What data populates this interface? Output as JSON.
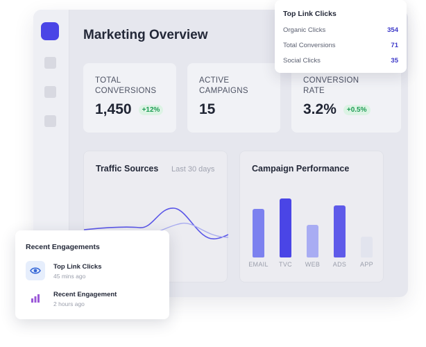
{
  "header": {
    "title": "Marketing Overview"
  },
  "stats": [
    {
      "label": "TOTAL CONVERSIONS",
      "value": "1,450",
      "badge": "+12%"
    },
    {
      "label": "ACTIVE CAMPAIGNS",
      "value": "15",
      "badge": ""
    },
    {
      "label": "CONVERSION RATE",
      "value": "3.2%",
      "badge": "+0.5%"
    }
  ],
  "traffic": {
    "title": "Traffic Sources",
    "subtitle": "Last 30 days"
  },
  "campaign": {
    "title": "Campaign Performance",
    "chart_data": {
      "type": "bar",
      "categories": [
        "EMAIL",
        "TVC",
        "WEB",
        "ADS",
        "APP"
      ],
      "values": [
        70,
        85,
        47,
        75,
        30
      ],
      "ylim": [
        0,
        100
      ],
      "colors": [
        "#7c81ef",
        "#4a45e6",
        "#a8acf3",
        "#5e5ae9",
        "#e2e4ee"
      ]
    }
  },
  "top_links": {
    "title": "Top Link Clicks",
    "rows": [
      {
        "label": "Organic Clicks",
        "value": "354"
      },
      {
        "label": "Total Conversions",
        "value": "71"
      },
      {
        "label": "Social Clicks",
        "value": "35"
      }
    ]
  },
  "engagements": {
    "title": "Recent Engagements",
    "items": [
      {
        "name": "Top Link Clicks",
        "time": "45 mins ago",
        "icon": "eye-icon"
      },
      {
        "name": "Recent Engagement",
        "time": "2 hours ago",
        "icon": "bar-chart-icon"
      }
    ]
  },
  "colors": {
    "accent": "#4a45e6",
    "positive": "#1f9d55"
  }
}
